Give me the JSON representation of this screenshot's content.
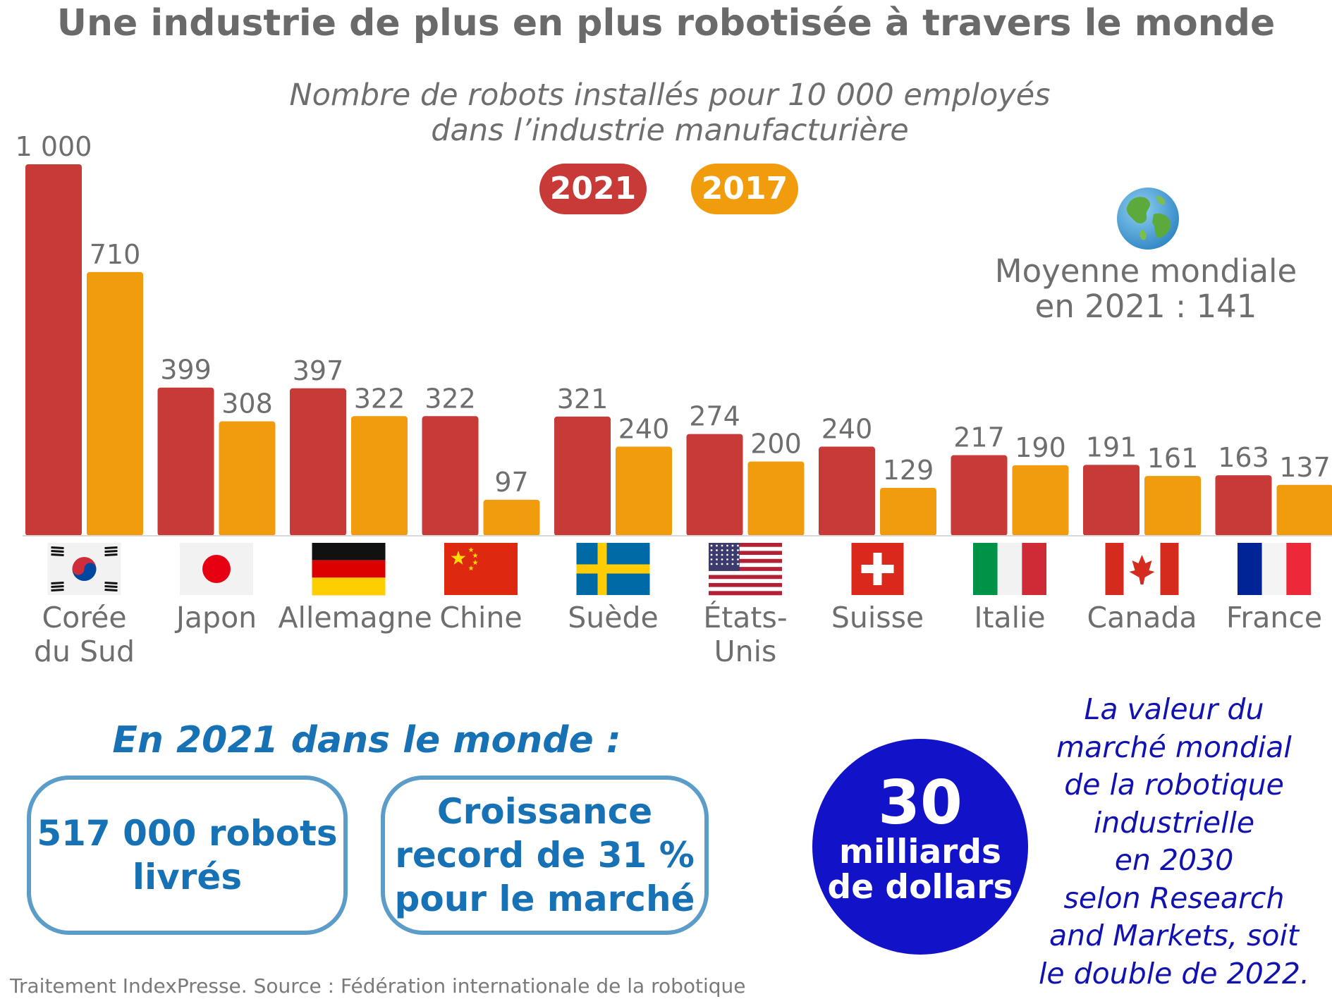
{
  "header": {
    "title": "Une industrie de plus en plus robotisée à travers le monde",
    "subtitle_line1": "Nombre de robots installés pour 10 000 employés",
    "subtitle_line2": "dans l’industrie manufacturière"
  },
  "world_average": {
    "icon": "globe-icon",
    "line1": "Moyenne mondiale",
    "line2": "en 2021 : 141"
  },
  "colors": {
    "series_2021": "#c73a38",
    "series_2017": "#f19c0c",
    "label_gray": "#6e6e6e",
    "accent_blue": "#1771b5",
    "circle_blue": "#1212c8"
  },
  "chart_data": {
    "type": "bar",
    "title": "Nombre de robots installés pour 10 000 employés dans l’industrie manufacturière",
    "xlabel": "",
    "ylabel": "",
    "ylim": [
      0,
      1000
    ],
    "grid": false,
    "legend_position": "top-center",
    "categories": [
      {
        "line1": "Corée",
        "line2": "du Sud",
        "flag": "south-korea"
      },
      {
        "line1": "Japon",
        "line2": "",
        "flag": "japan"
      },
      {
        "line1": "Allemagne",
        "line2": "",
        "flag": "germany"
      },
      {
        "line1": "Chine",
        "line2": "",
        "flag": "china"
      },
      {
        "line1": "Suède",
        "line2": "",
        "flag": "sweden"
      },
      {
        "line1": "États-Unis",
        "line2": "",
        "flag": "usa"
      },
      {
        "line1": "Suisse",
        "line2": "",
        "flag": "switzerland"
      },
      {
        "line1": "Italie",
        "line2": "",
        "flag": "italy"
      },
      {
        "line1": "Canada",
        "line2": "",
        "flag": "canada"
      },
      {
        "line1": "France",
        "line2": "",
        "flag": "france"
      }
    ],
    "series": [
      {
        "name": "2021",
        "values": [
          1000,
          399,
          397,
          322,
          321,
          274,
          240,
          217,
          191,
          163
        ],
        "labels": [
          "1 000",
          "399",
          "397",
          "322",
          "321",
          "274",
          "240",
          "217",
          "191",
          "163"
        ]
      },
      {
        "name": "2017",
        "values": [
          710,
          308,
          322,
          97,
          240,
          200,
          129,
          190,
          161,
          137
        ],
        "labels": [
          "710",
          "308",
          "322",
          "97",
          "240",
          "200",
          "129",
          "190",
          "161",
          "137"
        ]
      }
    ]
  },
  "stats": {
    "heading": "En 2021 dans le monde :",
    "robots_line1": "517 000 robots",
    "robots_line2": "livrés",
    "growth_line1": "Croissance",
    "growth_line2": "record de 31 %",
    "growth_line3": "pour le marché"
  },
  "market": {
    "number": "30",
    "unit_line1": "milliards",
    "unit_line2": "de dollars",
    "text_lines": [
      "La valeur du",
      "marché mondial",
      "de la robotique",
      "industrielle",
      "en 2030",
      "selon Research",
      "and Markets, soit",
      "le double de 2022."
    ]
  },
  "footer": {
    "source": "Traitement IndexPresse. Source : Fédération internationale de la robotique"
  }
}
